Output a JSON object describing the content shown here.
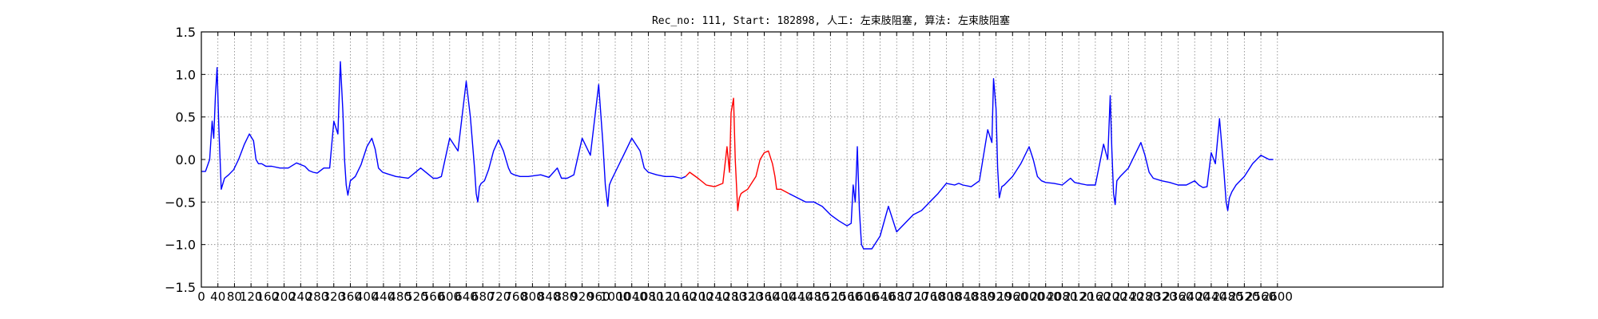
{
  "chart_data": {
    "type": "line",
    "title": "Rec_no: 111, Start: 182898, 人工: 左束肢阻塞, 算法: 左束肢阻塞",
    "xlabel": "",
    "ylabel": "",
    "xlim": [
      0,
      3000
    ],
    "ylim": [
      -1.5,
      1.5
    ],
    "grid": true,
    "yticks": [
      "1.5",
      "1.0",
      "0.5",
      "0.0",
      "−0.5",
      "−1.0",
      "−1.5"
    ],
    "xtick_labels": [
      "0",
      "40",
      "80",
      "120",
      "160",
      "200",
      "240",
      "280",
      "320",
      "360",
      "400",
      "440",
      "480",
      "520",
      "560",
      "600",
      "640",
      "680",
      "720",
      "760",
      "800",
      "840",
      "880",
      "920",
      "960",
      "1000",
      "1040",
      "1080",
      "1120",
      "1160",
      "1200",
      "1240",
      "1280",
      "1320",
      "1360",
      "1400",
      "1440",
      "1480",
      "1520",
      "1560",
      "1600",
      "1640",
      "1680",
      "1720",
      "1760",
      "1800",
      "1840",
      "1880",
      "1920",
      "1960",
      "2000",
      "2040",
      "2080",
      "2120",
      "2160",
      "2200",
      "2240",
      "2280",
      "2320",
      "2360",
      "2400",
      "2440",
      "2480",
      "2520",
      "2560",
      "2600"
    ],
    "colors": {
      "normal": "#0000ff",
      "highlight": "#ff0000",
      "grid": "#7f7f7f",
      "axes": "#000000"
    },
    "series": [
      {
        "color": "#0000ff",
        "x": [
          0,
          10,
          20,
          26,
          30,
          34,
          38,
          42,
          48,
          56,
          66,
          78,
          90,
          104,
          116,
          126,
          132,
          138,
          146,
          156,
          170,
          190,
          210,
          230,
          250,
          260,
          270,
          280,
          296,
          310,
          320,
          330,
          336,
          342,
          346,
          350,
          354,
          360,
          372,
          386,
          400,
          412,
          420,
          428,
          438,
          450,
          470,
          500,
          530,
          550,
          560,
          570,
          580,
          600,
          620,
          640,
          650,
          660,
          664,
          668,
          672,
          676,
          684,
          694,
          706,
          718,
          730,
          742,
          748,
          756,
          770,
          790,
          820,
          840,
          860,
          870,
          884,
          900,
          920,
          940,
          960,
          970,
          976,
          982,
          986,
          990,
          1000,
          1020,
          1040,
          1060,
          1070,
          1080,
          1100,
          1120,
          1140,
          1160,
          1170
        ],
        "y": [
          -0.14,
          -0.14,
          0.0,
          0.45,
          0.25,
          0.75,
          1.08,
          0.4,
          -0.35,
          -0.22,
          -0.18,
          -0.12,
          0.0,
          0.18,
          0.3,
          0.22,
          0.0,
          -0.05,
          -0.05,
          -0.08,
          -0.08,
          -0.1,
          -0.1,
          -0.04,
          -0.08,
          -0.13,
          -0.15,
          -0.16,
          -0.1,
          -0.1,
          0.45,
          0.3,
          1.15,
          0.55,
          0.0,
          -0.3,
          -0.42,
          -0.25,
          -0.2,
          -0.06,
          0.15,
          0.25,
          0.12,
          -0.1,
          -0.15,
          -0.17,
          -0.2,
          -0.22,
          -0.1,
          -0.18,
          -0.22,
          -0.22,
          -0.2,
          0.25,
          0.1,
          0.92,
          0.5,
          -0.1,
          -0.4,
          -0.5,
          -0.32,
          -0.28,
          -0.25,
          -0.12,
          0.1,
          0.23,
          0.1,
          -0.1,
          -0.16,
          -0.18,
          -0.2,
          -0.2,
          -0.18,
          -0.21,
          -0.1,
          -0.22,
          -0.22,
          -0.18,
          0.25,
          0.05,
          0.88,
          0.2,
          -0.3,
          -0.55,
          -0.3,
          -0.25,
          -0.15,
          0.05,
          0.25,
          0.1,
          -0.1,
          -0.15,
          -0.18,
          -0.2,
          -0.2,
          -0.22,
          -0.2
        ]
      },
      {
        "color": "#ff0000",
        "x": [
          1170,
          1180,
          1200,
          1220,
          1240,
          1260,
          1270,
          1276,
          1280,
          1286,
          1290,
          1296,
          1300,
          1304,
          1310,
          1320,
          1340,
          1350,
          1360,
          1370,
          1380,
          1386,
          1390,
          1400,
          1420
        ],
        "y": [
          -0.2,
          -0.15,
          -0.22,
          -0.3,
          -0.32,
          -0.28,
          0.15,
          -0.15,
          0.55,
          0.72,
          0.0,
          -0.6,
          -0.45,
          -0.4,
          -0.38,
          -0.35,
          -0.2,
          0.0,
          0.08,
          0.1,
          -0.05,
          -0.2,
          -0.35,
          -0.35,
          -0.4
        ]
      },
      {
        "color": "#0000ff",
        "x": [
          1420,
          1440,
          1460,
          1480,
          1500,
          1520,
          1540,
          1560,
          1570,
          1575,
          1580,
          1585,
          1590,
          1595,
          1600,
          1610,
          1620,
          1640,
          1660,
          1680,
          1700,
          1720,
          1740,
          1760,
          1780,
          1800,
          1820,
          1830,
          1840,
          1860,
          1880,
          1900,
          1910,
          1914,
          1920,
          1924,
          1928,
          1934,
          1940,
          1960,
          1980,
          2000,
          2010,
          2020,
          2030,
          2040,
          2060,
          2080,
          2100,
          2110,
          2120,
          2140,
          2160,
          2180,
          2190,
          2196,
          2200,
          2204,
          2208,
          2212,
          2220,
          2240,
          2260,
          2270,
          2280,
          2290,
          2300,
          2320,
          2340,
          2360,
          2380,
          2400,
          2410,
          2420,
          2430,
          2440,
          2450,
          2460,
          2470,
          2476,
          2480,
          2484,
          2490,
          2500,
          2520,
          2540,
          2560,
          2580,
          2590
        ],
        "y": [
          -0.4,
          -0.45,
          -0.5,
          -0.5,
          -0.55,
          -0.65,
          -0.72,
          -0.78,
          -0.75,
          -0.3,
          -0.5,
          0.15,
          -0.6,
          -1.0,
          -1.05,
          -1.05,
          -1.05,
          -0.9,
          -0.55,
          -0.85,
          -0.75,
          -0.65,
          -0.6,
          -0.5,
          -0.4,
          -0.28,
          -0.3,
          -0.28,
          -0.3,
          -0.32,
          -0.25,
          0.35,
          0.2,
          0.95,
          0.6,
          -0.1,
          -0.45,
          -0.32,
          -0.3,
          -0.2,
          -0.05,
          0.15,
          0.0,
          -0.2,
          -0.25,
          -0.27,
          -0.28,
          -0.3,
          -0.22,
          -0.27,
          -0.28,
          -0.3,
          -0.3,
          0.18,
          0.0,
          0.75,
          0.1,
          -0.4,
          -0.53,
          -0.25,
          -0.2,
          -0.1,
          0.1,
          0.2,
          0.05,
          -0.15,
          -0.22,
          -0.25,
          -0.27,
          -0.3,
          -0.3,
          -0.25,
          -0.3,
          -0.33,
          -0.32,
          0.08,
          -0.05,
          0.48,
          -0.1,
          -0.5,
          -0.6,
          -0.45,
          -0.38,
          -0.3,
          -0.2,
          -0.05,
          0.05,
          0.0,
          0.0
        ]
      }
    ]
  }
}
